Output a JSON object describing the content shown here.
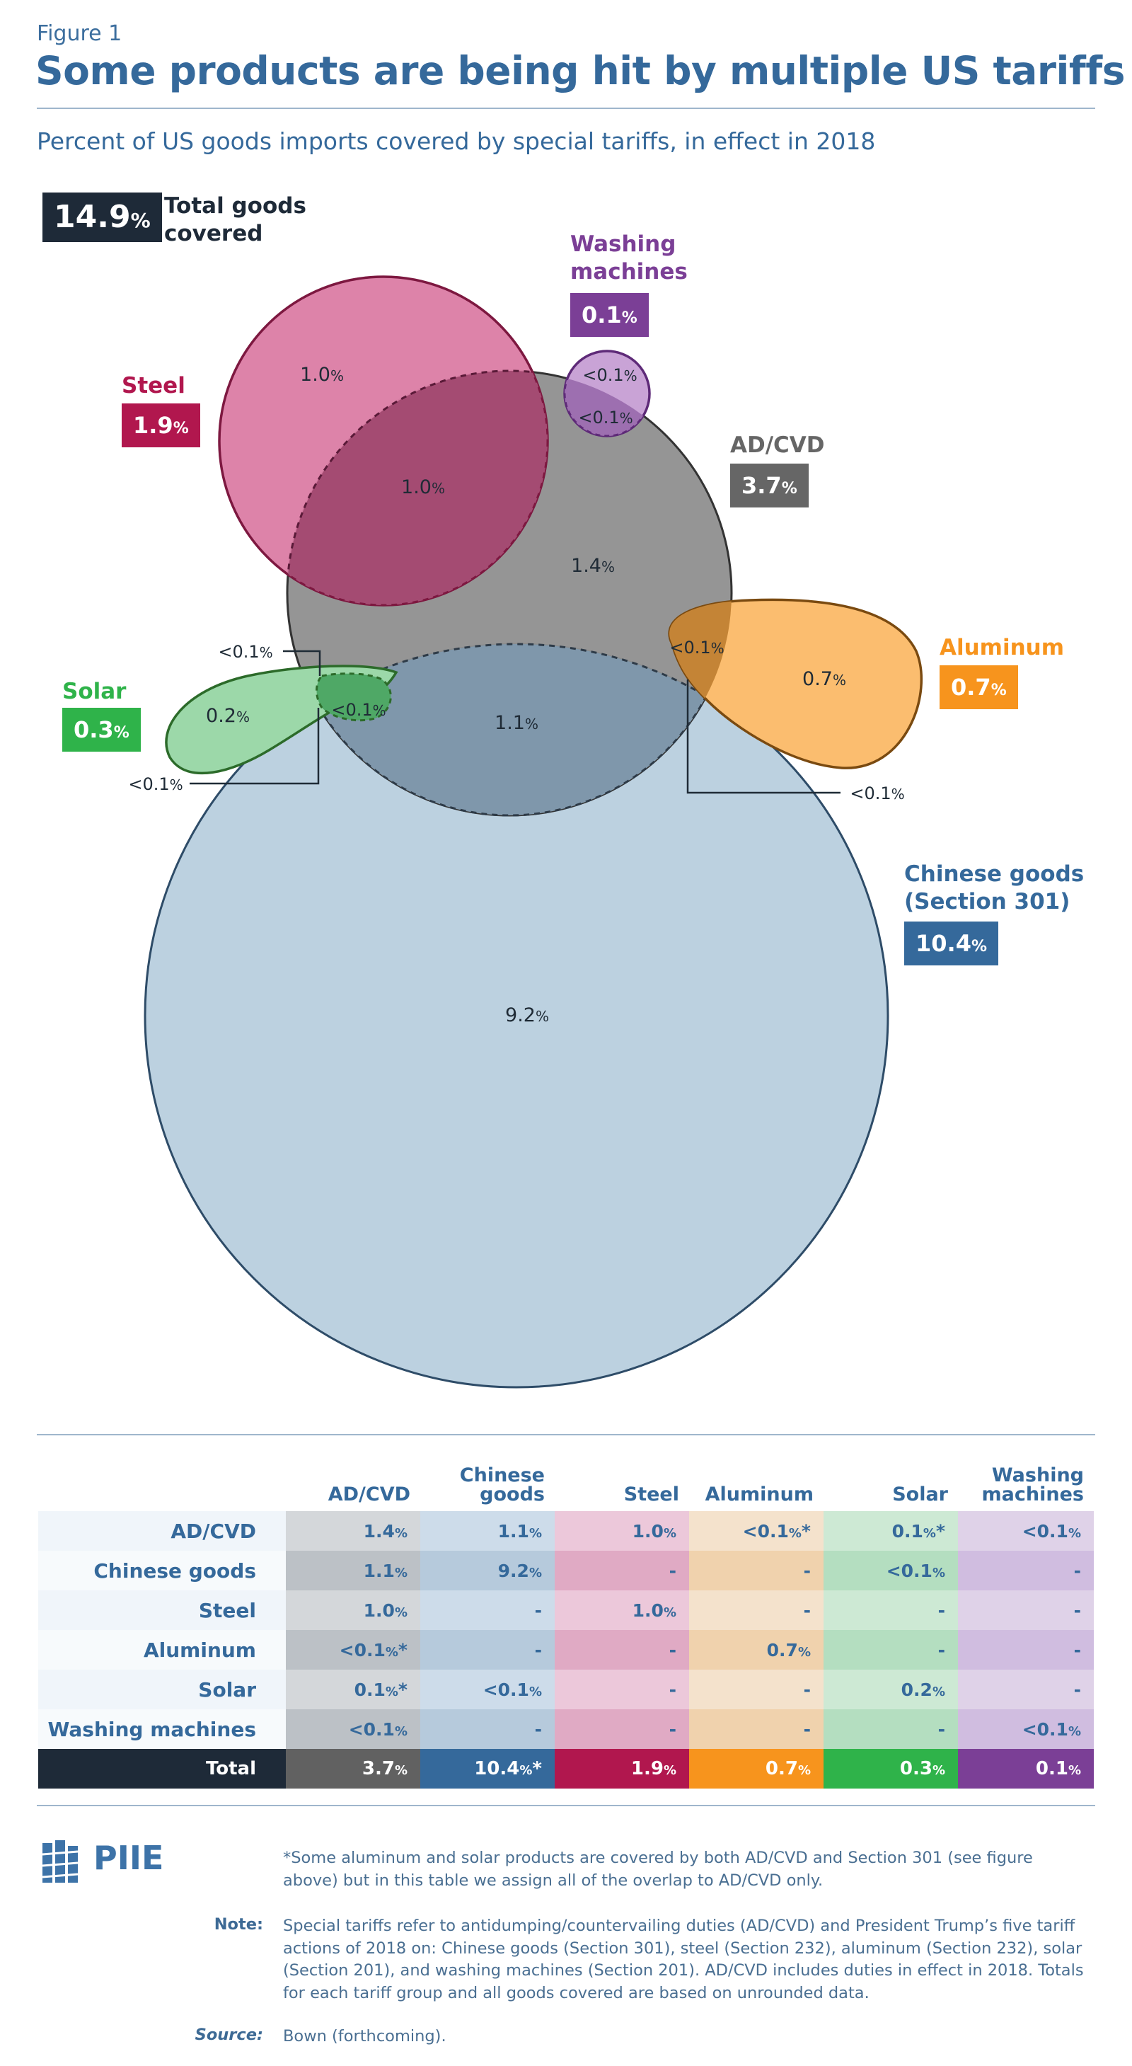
{
  "figure_label": "Figure 1",
  "title": "Some products are being hit by multiple US tariffs",
  "subtitle": "Percent of US goods imports covered by special tariffs, in effect in 2018",
  "total": {
    "value": "14.9",
    "pct": "%",
    "label_line1": "Total goods",
    "label_line2": "covered"
  },
  "colors": {
    "adcvd": "#666666",
    "chinese": "#35699b",
    "steel": "#b1174e",
    "aluminum": "#f7941d",
    "solar": "#2fb34a",
    "washing": "#7b3f96",
    "navy": "#1e2a38"
  },
  "chart_data": {
    "type": "venn",
    "sets": [
      {
        "name": "Steel",
        "value": 1.9,
        "box": "1.9"
      },
      {
        "name": "Washing machines",
        "value": 0.1,
        "box": "0.1"
      },
      {
        "name": "AD/CVD",
        "value": 3.7,
        "box": "3.7"
      },
      {
        "name": "Aluminum",
        "value": 0.7,
        "box": "0.7"
      },
      {
        "name": "Solar",
        "value": 0.3,
        "box": "0.3"
      },
      {
        "name": "Chinese goods (Section 301)",
        "value": 10.4,
        "box": "10.4"
      }
    ],
    "regions": [
      {
        "sets": [
          "Steel"
        ],
        "label": "1.0"
      },
      {
        "sets": [
          "Steel",
          "AD/CVD"
        ],
        "label": "1.0"
      },
      {
        "sets": [
          "Washing machines"
        ],
        "label": "<0.1"
      },
      {
        "sets": [
          "Washing machines",
          "AD/CVD"
        ],
        "label": "<0.1"
      },
      {
        "sets": [
          "AD/CVD"
        ],
        "label": "1.4"
      },
      {
        "sets": [
          "Aluminum",
          "AD/CVD"
        ],
        "label": "<0.1"
      },
      {
        "sets": [
          "Aluminum"
        ],
        "label": "0.7"
      },
      {
        "sets": [
          "Solar"
        ],
        "label": "0.2"
      },
      {
        "sets": [
          "Solar",
          "AD/CVD"
        ],
        "label": "<0.1"
      },
      {
        "sets": [
          "AD/CVD",
          "Chinese goods (Section 301)"
        ],
        "label": "1.1"
      },
      {
        "sets": [
          "Chinese goods (Section 301)"
        ],
        "label": "9.2"
      }
    ],
    "callouts": [
      {
        "id": "solar-top",
        "label": "<0.1"
      },
      {
        "id": "solar-bottom",
        "label": "<0.1"
      },
      {
        "id": "aluminum-bottom",
        "label": "<0.1"
      }
    ]
  },
  "legend": {
    "steel": "Steel",
    "washing_line1": "Washing",
    "washing_line2": "machines",
    "adcvd": "AD/CVD",
    "aluminum": "Aluminum",
    "solar": "Solar",
    "chinese_line1": "Chinese goods",
    "chinese_line2": "(Section 301)"
  },
  "table": {
    "col_headers": [
      {
        "line1": "",
        "line2": "AD/CVD"
      },
      {
        "line1": "Chinese",
        "line2": "goods"
      },
      {
        "line1": "",
        "line2": "Steel"
      },
      {
        "line1": "",
        "line2": "Aluminum"
      },
      {
        "line1": "",
        "line2": "Solar"
      },
      {
        "line1": "Washing",
        "line2": "machines"
      }
    ],
    "rows": [
      {
        "label": "AD/CVD",
        "cells": [
          "1.4",
          "1.1",
          "1.0",
          "<0.1",
          "0.1",
          "<0.1"
        ],
        "marks": [
          "",
          "",
          "",
          "*",
          "*",
          ""
        ]
      },
      {
        "label": "Chinese goods",
        "cells": [
          "1.1",
          "9.2",
          "-",
          "-",
          "<0.1",
          "-"
        ],
        "marks": [
          "",
          "",
          "",
          "",
          "",
          ""
        ]
      },
      {
        "label": "Steel",
        "cells": [
          "1.0",
          "-",
          "1.0",
          "-",
          "-",
          "-"
        ],
        "marks": [
          "",
          "",
          "",
          "",
          "",
          ""
        ]
      },
      {
        "label": "Aluminum",
        "cells": [
          "<0.1",
          "-",
          "-",
          "0.7",
          "-",
          "-"
        ],
        "marks": [
          "*",
          "",
          "",
          "",
          "",
          ""
        ]
      },
      {
        "label": "Solar",
        "cells": [
          "0.1",
          "<0.1",
          "-",
          "-",
          "0.2",
          "-"
        ],
        "marks": [
          "*",
          "",
          "",
          "",
          "",
          ""
        ]
      },
      {
        "label": "Washing machines",
        "cells": [
          "<0.1",
          "-",
          "-",
          "-",
          "-",
          "<0.1"
        ],
        "marks": [
          "",
          "",
          "",
          "",
          "",
          ""
        ]
      }
    ],
    "total_row": {
      "label": "Total",
      "cells": [
        "3.7",
        "10.4",
        "1.9",
        "0.7",
        "0.3",
        "0.1"
      ],
      "marks": [
        "",
        "*",
        "",
        "",
        "",
        ""
      ]
    }
  },
  "logo": "PIIE",
  "footnote": "*Some aluminum and solar products are covered by both AD/CVD and Section 301 (see figure above) but in this table we assign all of the overlap to AD/CVD only.",
  "note_label": "Note:",
  "note": "Special tariffs refer to antidumping/countervailing duties (AD/CVD) and President Trump’s five tariff actions of 2018 on: Chinese goods (Section 301), steel (Section 232), aluminum (Section 232), solar (Section 201), and washing machines (Section 201). AD/CVD includes duties in effect in 2018. Totals for each tariff group and all goods covered are based on unrounded data.",
  "source_label": "Source:",
  "source": "Bown (forthcoming)."
}
